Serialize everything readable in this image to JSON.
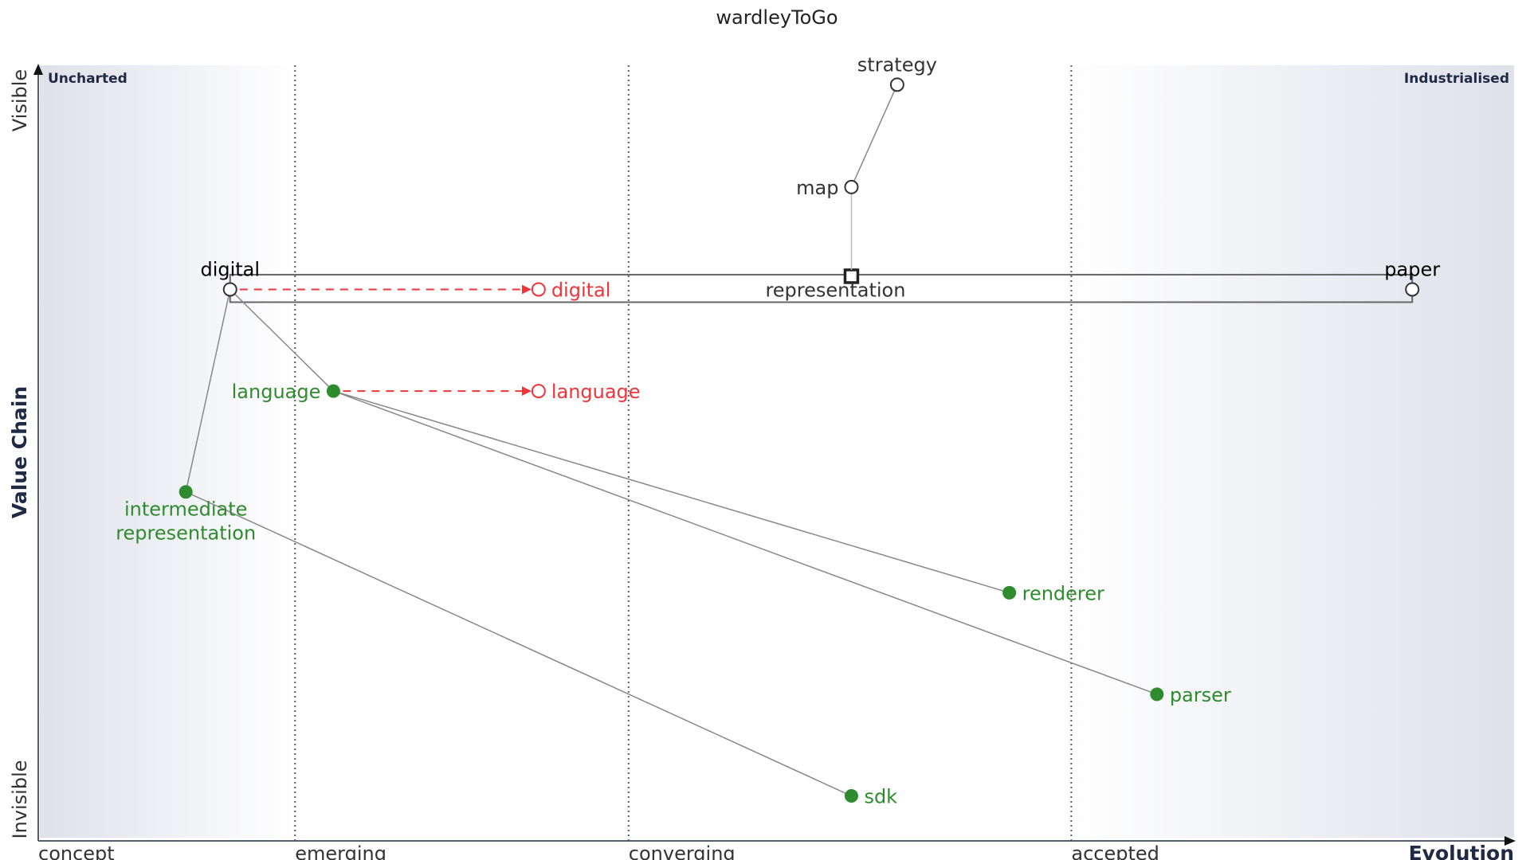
{
  "title": "wardleyToGo",
  "axes": {
    "x_label": "Evolution",
    "y_label": "Value Chain",
    "y_top": "Visible",
    "y_bottom": "Invisible",
    "stages": [
      "concept",
      "emerging",
      "converging",
      "accepted"
    ],
    "stage_boundaries": [
      0.174,
      0.4,
      0.7
    ],
    "corner_left": "Uncharted",
    "corner_right": "Industrialised"
  },
  "colors": {
    "default": "#333333",
    "green": "#2e8b2e",
    "red": "#f0343a",
    "axis": "#555d6e",
    "band": "#e5e7ee"
  },
  "components": [
    {
      "id": "strategy",
      "label": "strategy",
      "evolution": 0.582,
      "visibility": 0.975,
      "kind": "open",
      "color": "default",
      "label_pos": "above"
    },
    {
      "id": "map",
      "label": "map",
      "evolution": 0.551,
      "visibility": 0.843,
      "kind": "open",
      "color": "default",
      "label_pos": "left"
    },
    {
      "id": "digital",
      "label": "digital",
      "evolution": 0.13,
      "visibility": 0.711,
      "kind": "open",
      "color": "black",
      "label_pos": "above"
    },
    {
      "id": "paper",
      "label": "paper",
      "evolution": 0.931,
      "visibility": 0.711,
      "kind": "open",
      "color": "black",
      "label_pos": "above"
    },
    {
      "id": "digital-future",
      "label": "digital",
      "evolution": 0.339,
      "visibility": 0.711,
      "kind": "open",
      "color": "red",
      "label_pos": "right"
    },
    {
      "id": "language",
      "label": "language",
      "evolution": 0.2,
      "visibility": 0.58,
      "kind": "dot",
      "color": "green",
      "label_pos": "left"
    },
    {
      "id": "language-future",
      "label": "language",
      "evolution": 0.339,
      "visibility": 0.58,
      "kind": "open",
      "color": "red",
      "label_pos": "right"
    },
    {
      "id": "intermediate",
      "label": "intermediate representation",
      "lines": [
        "intermediate",
        "representation"
      ],
      "evolution": 0.1,
      "visibility": 0.45,
      "kind": "dot",
      "color": "green",
      "label_pos": "below"
    },
    {
      "id": "renderer",
      "label": "renderer",
      "evolution": 0.658,
      "visibility": 0.32,
      "kind": "dot",
      "color": "green",
      "label_pos": "right"
    },
    {
      "id": "parser",
      "label": "parser",
      "evolution": 0.758,
      "visibility": 0.189,
      "kind": "dot",
      "color": "green",
      "label_pos": "right"
    },
    {
      "id": "sdk",
      "label": "sdk",
      "evolution": 0.551,
      "visibility": 0.058,
      "kind": "dot",
      "color": "green",
      "label_pos": "right"
    }
  ],
  "pipeline": {
    "label": "representation",
    "evolution": 0.551,
    "visibility": 0.728,
    "range": [
      0.13,
      0.931
    ]
  },
  "links": [
    [
      "strategy",
      "map"
    ],
    [
      "digital",
      "language"
    ],
    [
      "digital",
      "intermediate"
    ],
    [
      "language",
      "renderer"
    ],
    [
      "language",
      "parser"
    ],
    [
      "intermediate",
      "sdk"
    ]
  ],
  "pipeline_link": {
    "from": "map",
    "to_pipeline": true
  },
  "evolutions": [
    [
      "digital",
      "digital-future"
    ],
    [
      "language",
      "language-future"
    ]
  ]
}
